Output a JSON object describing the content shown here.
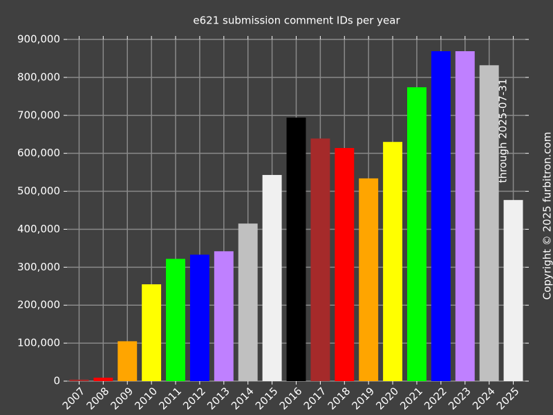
{
  "chart_data": {
    "type": "bar",
    "title": "e621 submission comment IDs per year",
    "annotation": "through 2025-07-31",
    "copyright": "Copyright © 2025 furbitron.com",
    "categories": [
      "2007",
      "2008",
      "2009",
      "2010",
      "2011",
      "2012",
      "2013",
      "2014",
      "2015",
      "2016",
      "2017",
      "2018",
      "2019",
      "2020",
      "2021",
      "2022",
      "2023",
      "2024",
      "2025"
    ],
    "values": [
      4000,
      9000,
      105000,
      255000,
      322000,
      333000,
      342000,
      415000,
      543000,
      694000,
      639000,
      614000,
      534000,
      630000,
      774000,
      869000,
      869000,
      832000,
      477000
    ],
    "colors": [
      "#a52a2a",
      "#ff0000",
      "#ffa500",
      "#ffff00",
      "#00ff00",
      "#0000ff",
      "#bf80ff",
      "#c0c0c0",
      "#f0f0f0",
      "#000000",
      "#a52a2a",
      "#ff0000",
      "#ffa500",
      "#ffff00",
      "#00ff00",
      "#0000ff",
      "#bf80ff",
      "#c0c0c0",
      "#f0f0f0"
    ],
    "ylim": [
      0,
      900000
    ],
    "yticks": [
      0,
      {
        "value": 100000,
        "label": "100,000"
      },
      {
        "value": 200000,
        "label": "200,000"
      },
      {
        "value": 300000,
        "label": "300,000"
      },
      {
        "value": 400000,
        "label": "400,000"
      },
      {
        "value": 500000,
        "label": "500,000"
      },
      {
        "value": 600000,
        "label": "600,000"
      },
      {
        "value": 700000,
        "label": "700,000"
      },
      {
        "value": 800000,
        "label": "800,000"
      },
      {
        "value": 900000,
        "label": "900,000"
      }
    ],
    "grid": true
  }
}
